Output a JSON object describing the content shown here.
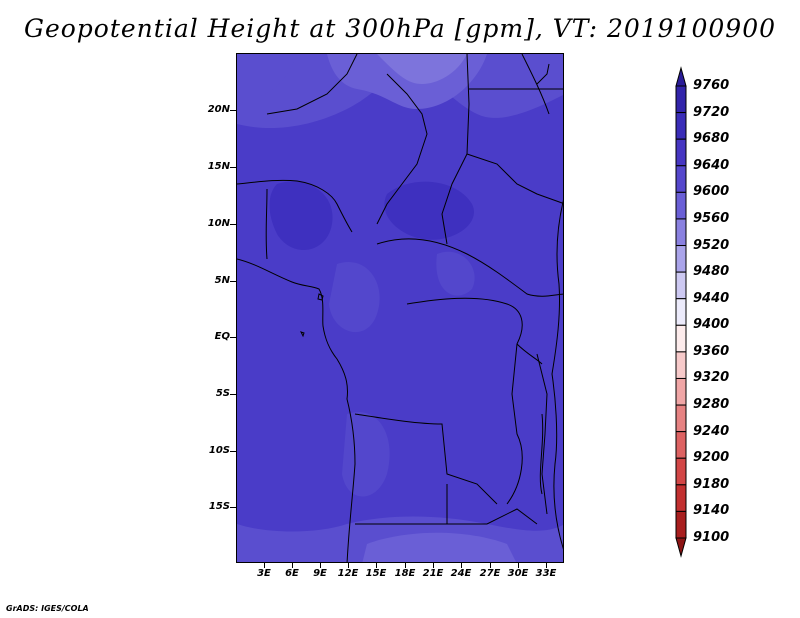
{
  "title": "Geopotential Height at 300hPa [gpm], VT: 2019100900",
  "footer": "GrADS: IGES/COLA",
  "map": {
    "lat_labels": [
      "20N",
      "15N",
      "10N",
      "5N",
      "EQ",
      "5S",
      "10S",
      "15S"
    ],
    "lon_labels": [
      "3E",
      "6E",
      "9E",
      "12E",
      "15E",
      "18E",
      "21E",
      "24E",
      "27E",
      "30E",
      "33E"
    ],
    "field_description_colors": {
      "background": "#4a3cc8",
      "lighter_band": "#6a5fd6",
      "lightest_band": "#8077dc",
      "darker_band": "#3d2fbd"
    }
  },
  "colorbar": {
    "labels": [
      "9760",
      "9720",
      "9680",
      "9640",
      "9600",
      "9560",
      "9520",
      "9480",
      "9440",
      "9400",
      "9360",
      "9320",
      "9280",
      "9240",
      "9200",
      "9180",
      "9140",
      "9100"
    ],
    "colors": [
      "#2a1c98",
      "#3224aa",
      "#3a2db8",
      "#4636c2",
      "#5547cc",
      "#6a5fd6",
      "#8a81e0",
      "#aaa4ea",
      "#cdc9f2",
      "#ecebfb",
      "#fdecec",
      "#f7caca",
      "#f0a6a6",
      "#e68282",
      "#dd6262",
      "#d24646",
      "#c23030",
      "#a81e1e",
      "#8c1414"
    ]
  }
}
